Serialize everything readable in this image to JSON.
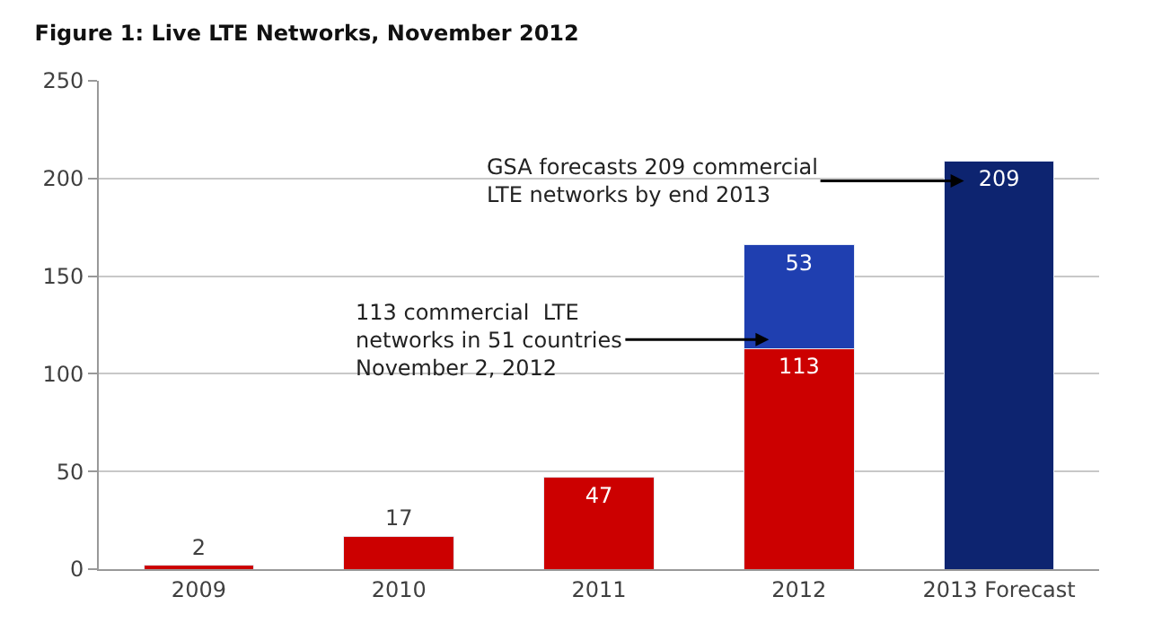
{
  "chart_data": {
    "type": "bar",
    "title": "Figure 1: Live LTE Networks, November 2012",
    "categories": [
      "2009",
      "2010",
      "2011",
      "2012",
      "2013 Forecast"
    ],
    "stacked": true,
    "series": [
      {
        "colors": [
          "#cc0000",
          "#cc0000",
          "#cc0000",
          "#cc0000",
          null
        ],
        "values": [
          2,
          17,
          47,
          113,
          null
        ]
      },
      {
        "colors": [
          null,
          null,
          null,
          "#1f3fb0",
          "#0d2470"
        ],
        "values": [
          null,
          null,
          null,
          53,
          209
        ]
      }
    ],
    "ylim": [
      0,
      250
    ],
    "yticks": [
      0,
      50,
      100,
      150,
      200,
      250
    ],
    "grid": "y",
    "data_labels": true,
    "legend": false,
    "annotations": [
      "113 commercial  LTE\nnetworks in 51 countries\nNovember 2, 2012",
      "GSA forecasts 209 commercial\nLTE networks by end 2013"
    ]
  }
}
